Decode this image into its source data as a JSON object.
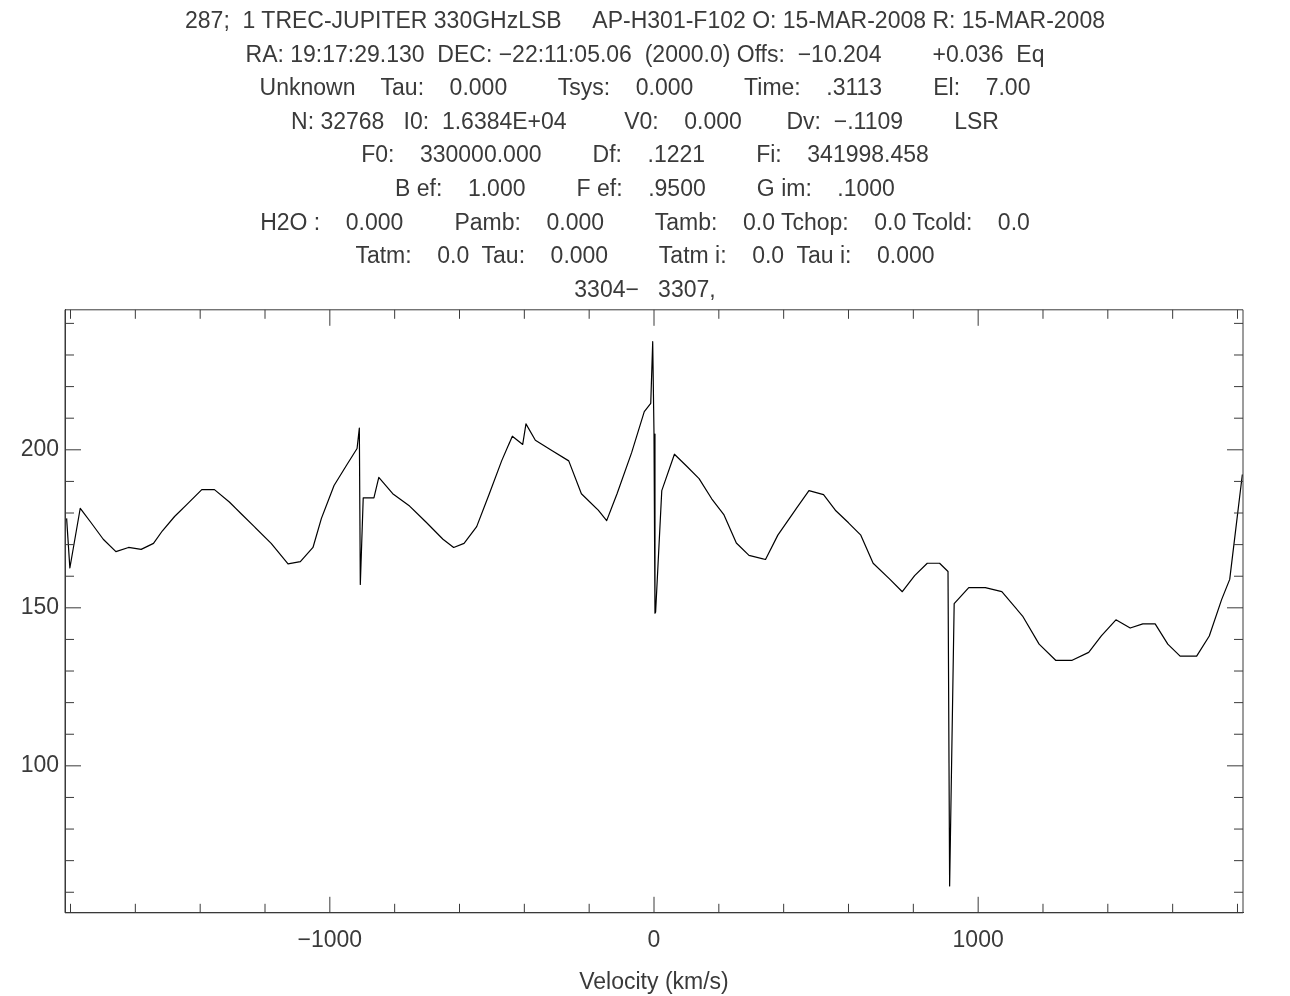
{
  "chart_data": {
    "type": "line",
    "annotations": [
      "287;  1 TREC-JUPITER 330GHzLSB     AP-H301-F102 O: 15-MAR-2008 R: 15-MAR-2008",
      "RA: 19:17:29.130  DEC: −22:11:05.06  (2000.0) Offs:  −10.204        +0.036  Eq",
      "Unknown    Tau:    0.000        Tsys:    0.000        Time:    .3113        El:    7.00",
      "N: 32768   I0:  1.6384E+04         V0:    0.000       Dv:  −.1109        LSR",
      "F0:    330000.000        Df:    .1221        Fi:    341998.458",
      "B ef:    1.000        F ef:    .9500        G im:    .1000",
      "H2O :    0.000        Pamb:    0.000        Tamb:    0.0 Tchop:    0.0 Tcold:    0.0",
      "Tatm:    0.0  Tau:    0.000        Tatm i:    0.0  Tau i:    0.000",
      "3304−   3307,"
    ],
    "xlabel": "Velocity (km/s)",
    "xlim": [
      -1817,
      1817
    ],
    "ylim": [
      53.5,
      244.3
    ],
    "xticks": [
      {
        "value": -1800,
        "label": null
      },
      {
        "value": -1600,
        "label": null
      },
      {
        "value": -1400,
        "label": null
      },
      {
        "value": -1200,
        "label": null
      },
      {
        "value": -1000,
        "label": "−1000"
      },
      {
        "value": -800,
        "label": null
      },
      {
        "value": -600,
        "label": null
      },
      {
        "value": -400,
        "label": null
      },
      {
        "value": -200,
        "label": null
      },
      0,
      {
        "value": 200,
        "label": null
      },
      {
        "value": 400,
        "label": null
      },
      {
        "value": 600,
        "label": null
      },
      {
        "value": 800,
        "label": null
      },
      1000,
      {
        "value": 1200,
        "label": null
      },
      {
        "value": 1400,
        "label": null
      },
      {
        "value": 1600,
        "label": null
      },
      {
        "value": 1800,
        "label": null
      }
    ],
    "yticks": [
      {
        "value": 60,
        "label": null
      },
      {
        "value": 70,
        "label": null
      },
      {
        "value": 80,
        "label": null
      },
      {
        "value": 90,
        "label": null
      },
      100,
      {
        "value": 110,
        "label": null
      },
      {
        "value": 120,
        "label": null
      },
      {
        "value": 130,
        "label": null
      },
      {
        "value": 140,
        "label": null
      },
      150,
      {
        "value": 160,
        "label": null
      },
      {
        "value": 170,
        "label": null
      },
      {
        "value": 180,
        "label": null
      },
      {
        "value": 190,
        "label": null
      },
      200,
      {
        "value": 210,
        "label": null
      },
      {
        "value": 220,
        "label": null
      },
      {
        "value": 230,
        "label": null
      },
      {
        "value": 240,
        "label": null
      }
    ],
    "marker": "none",
    "line_style": "solid",
    "series": [
      {
        "color": "#000000",
        "x": [
          -1812,
          -1802,
          -1770,
          -1737,
          -1699,
          -1660,
          -1621,
          -1582,
          -1544,
          -1517,
          -1479,
          -1440,
          -1395,
          -1356,
          -1310,
          -1272,
          -1233,
          -1181,
          -1129,
          -1091,
          -1052,
          -1026,
          -987,
          -948,
          -916,
          -909,
          -906,
          -897,
          -864,
          -849,
          -806,
          -754,
          -702,
          -651,
          -618,
          -586,
          -547,
          -508,
          -470,
          -437,
          -405,
          -395,
          -366,
          -314,
          -263,
          -224,
          -172,
          -146,
          -114,
          -69,
          -30,
          -10,
          -4,
          0,
          3,
          5,
          24,
          63,
          101,
          139,
          178,
          216,
          254,
          293,
          344,
          382,
          434,
          478,
          523,
          561,
          600,
          638,
          676,
          728,
          766,
          804,
          843,
          881,
          907,
          912,
          926,
          971,
          1022,
          1073,
          1137,
          1188,
          1239,
          1290,
          1341,
          1380,
          1425,
          1469,
          1508,
          1546,
          1585,
          1623,
          1674,
          1713,
          1751,
          1776,
          1815
        ],
        "values": [
          178.3,
          162.6,
          181.5,
          177,
          171.7,
          167.8,
          169.1,
          168.5,
          170.4,
          174.3,
          178.9,
          182.8,
          187.4,
          187.4,
          183.5,
          179.6,
          175.7,
          170.4,
          163.9,
          164.6,
          169.1,
          178.3,
          188.7,
          195.2,
          200.4,
          206.9,
          157.4,
          184.8,
          184.8,
          191.3,
          186.1,
          182.2,
          177,
          171.7,
          169.1,
          170.4,
          175.7,
          186.1,
          196.5,
          204.3,
          201.7,
          208.2,
          203,
          199.7,
          196.5,
          186.1,
          180.9,
          177.6,
          186.1,
          199.1,
          212.1,
          214.7,
          234.2,
          205,
          148.3,
          148.7,
          187.1,
          198.6,
          194.8,
          190.9,
          184.5,
          179.4,
          170.5,
          166.6,
          165.3,
          173,
          180.7,
          187.1,
          185.8,
          180.7,
          176.9,
          173,
          164.1,
          159,
          155.1,
          160.2,
          164.1,
          164.1,
          161.5,
          62,
          151.3,
          156.4,
          156.4,
          155.1,
          147.4,
          138.5,
          133.4,
          133.4,
          135.9,
          141.1,
          146.2,
          143.6,
          144.9,
          144.9,
          138.5,
          134.7,
          134.7,
          141.1,
          152.6,
          159,
          192.2
        ]
      }
    ]
  }
}
